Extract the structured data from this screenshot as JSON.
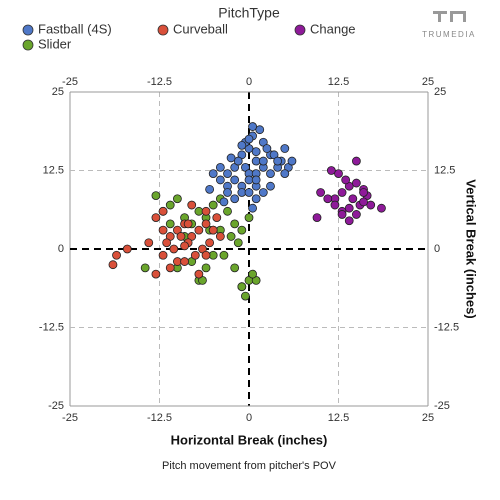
{
  "logo": "TRUMEDIA",
  "chart_data": {
    "type": "scatter",
    "legend_title": "PitchType",
    "xlabel": "Horizontal Break (inches)",
    "ylabel": "Vertical Break (inches)",
    "caption": "Pitch movement from pitcher's POV",
    "xlim": [
      -25,
      25
    ],
    "ylim": [
      -25,
      25
    ],
    "xticks": [
      -25,
      -12.5,
      0,
      12.5,
      25
    ],
    "yticks": [
      -25,
      -12.5,
      0,
      12.5,
      25
    ],
    "grid": true,
    "series": [
      {
        "name": "Fastball (4S)",
        "color": "#4f78c8",
        "x": [
          -1,
          0,
          1,
          2,
          3,
          -2,
          -3,
          0.5,
          1.5,
          2.5,
          3.5,
          4.5,
          5.5,
          -1.5,
          -0.5,
          0,
          1,
          2,
          3,
          4,
          5,
          -4,
          -3,
          -2,
          -1,
          0,
          1,
          2,
          -5,
          -4,
          -3,
          -2,
          -1,
          0,
          1,
          3,
          4,
          -0.5,
          0.5,
          1,
          2,
          -2.5,
          -1,
          0,
          6,
          5,
          1,
          -5.5,
          -3.5,
          0.5
        ],
        "values": [
          15,
          16,
          14,
          17,
          15,
          13,
          12,
          18,
          19,
          16,
          15,
          14,
          13,
          14,
          13,
          12,
          12,
          13,
          12,
          13,
          12,
          11,
          10,
          11,
          10,
          11,
          10,
          9,
          12,
          13,
          9,
          8,
          9,
          9,
          8,
          10,
          14,
          17,
          19.5,
          15.5,
          14,
          14.5,
          16.5,
          17.5,
          14,
          16,
          11,
          9.5,
          7.5,
          6.5
        ]
      },
      {
        "name": "Curveball",
        "color": "#d9503a",
        "x": [
          -4,
          -5,
          -6,
          -7,
          -8,
          -9,
          -10,
          -11,
          -12,
          -13,
          -5.5,
          -6.5,
          -7.5,
          -8.5,
          -9.5,
          -10.5,
          -11.5,
          -4.5,
          -6,
          -8,
          -10,
          -12,
          -14,
          -17,
          -19,
          -18.5,
          -7,
          -9,
          -11,
          -13,
          -5,
          -6,
          -8.5,
          -9,
          -12
        ],
        "values": [
          2,
          3,
          4,
          3,
          2,
          4,
          3,
          2,
          3,
          5,
          1,
          0,
          -1,
          1,
          2,
          0,
          1,
          5,
          6,
          7,
          -2,
          -1,
          1,
          0,
          -2.5,
          -1,
          -4,
          -2,
          -3,
          -4,
          3,
          -1,
          4,
          0.5,
          6
        ]
      },
      {
        "name": "Change",
        "color": "#8e1a99",
        "x": [
          14,
          15,
          16,
          13,
          12,
          14.5,
          15.5,
          13.5,
          12.5,
          16.5,
          17,
          18.5,
          10,
          11,
          12,
          13,
          14,
          15,
          16,
          9.5,
          15,
          14,
          13,
          16,
          11.5
        ],
        "values": [
          10,
          10.5,
          9.5,
          9,
          8,
          8,
          7,
          11,
          12,
          8.5,
          7,
          6.5,
          9,
          8,
          7,
          6,
          6.5,
          5.5,
          7.5,
          5,
          14,
          4.5,
          5.5,
          9,
          12.5
        ]
      },
      {
        "name": "Slider",
        "color": "#6aa52c",
        "x": [
          -14.5,
          -12,
          -11,
          -10,
          -9,
          -8,
          -7,
          -6,
          -5,
          -4,
          -3,
          -2,
          -1,
          0,
          1,
          -1,
          -0.5,
          0.5,
          -2,
          -2.5,
          -5,
          -6,
          -7,
          -8,
          -13,
          -11,
          -9,
          -4,
          -3.5,
          -1.5,
          0,
          -1,
          -6.5,
          -5.5,
          -10
        ],
        "values": [
          -3,
          6,
          7,
          8,
          5,
          4,
          6,
          5,
          7,
          8,
          6,
          4,
          3,
          -5,
          -5,
          -6,
          -7.5,
          -4,
          -3,
          2,
          -1,
          -3,
          -5,
          -2,
          8.5,
          4,
          2,
          3,
          -1,
          1,
          5,
          -6,
          -5,
          3,
          -3
        ]
      }
    ]
  }
}
